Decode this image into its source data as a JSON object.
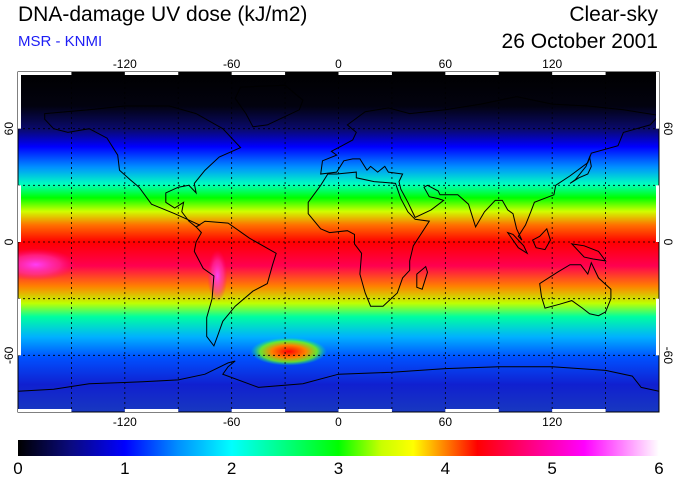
{
  "header": {
    "title": "DNA-damage UV dose (kJ/m2)",
    "source": "MSR - KNMI",
    "sky_condition": "Clear-sky",
    "date": "26 October 2001"
  },
  "map": {
    "projection": "equirectangular",
    "lon_range": [
      -180,
      180
    ],
    "lat_range": [
      -90,
      90
    ],
    "lon_ticks": [
      -120,
      -60,
      0,
      60,
      120
    ],
    "lon_tick_labels": [
      "-120",
      "-60",
      "0",
      "60",
      "120"
    ],
    "lat_ticks": [
      60,
      0,
      -60
    ],
    "lat_tick_labels": [
      "60",
      "0",
      "-60"
    ],
    "gridlines": "dotted, every 30 degrees"
  },
  "colorbar": {
    "min": 0,
    "max": 6,
    "tick_labels": [
      "0",
      "1",
      "2",
      "3",
      "4",
      "5",
      "6"
    ],
    "stops": [
      {
        "value": 0,
        "color": "#000000"
      },
      {
        "value": 0.5,
        "color": "#0a0a80"
      },
      {
        "value": 1,
        "color": "#0000ff"
      },
      {
        "value": 1.5,
        "color": "#0090ff"
      },
      {
        "value": 2,
        "color": "#00ffff"
      },
      {
        "value": 2.5,
        "color": "#00ff80"
      },
      {
        "value": 3,
        "color": "#00ff00"
      },
      {
        "value": 3.4,
        "color": "#c8ff00"
      },
      {
        "value": 3.7,
        "color": "#ffff00"
      },
      {
        "value": 4,
        "color": "#ff8000"
      },
      {
        "value": 4.3,
        "color": "#ff0000"
      },
      {
        "value": 4.8,
        "color": "#ff0080"
      },
      {
        "value": 5.3,
        "color": "#ff00ff"
      },
      {
        "value": 6,
        "color": "#ffffff"
      }
    ]
  }
}
